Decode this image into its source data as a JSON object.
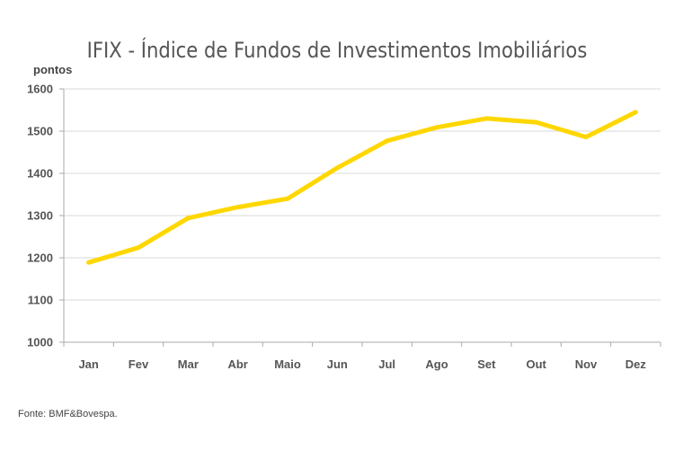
{
  "chart_data": {
    "type": "line",
    "title": "IFIX  - Índice de Fundos de Investimentos Imobiliários",
    "ylabel": "pontos",
    "xlabel": "",
    "categories": [
      "Jan",
      "Fev",
      "Mar",
      "Abr",
      "Maio",
      "Jun",
      "Jul",
      "Ago",
      "Set",
      "Out",
      "Nov",
      "Dez"
    ],
    "series": [
      {
        "values": [
          1189,
          1224,
          1294,
          1320,
          1340,
          1413,
          1477,
          1509,
          1530,
          1521,
          1486,
          1545
        ]
      }
    ],
    "ylim": [
      1000,
      1600
    ],
    "yticks": [
      1000,
      1100,
      1200,
      1300,
      1400,
      1500,
      1600
    ],
    "grid": true,
    "line_color": "#FFD700",
    "grid_color": "#d9d9d9",
    "axis_color": "#aaaaaa"
  },
  "source": "Fonte: BMF&Bovespa."
}
